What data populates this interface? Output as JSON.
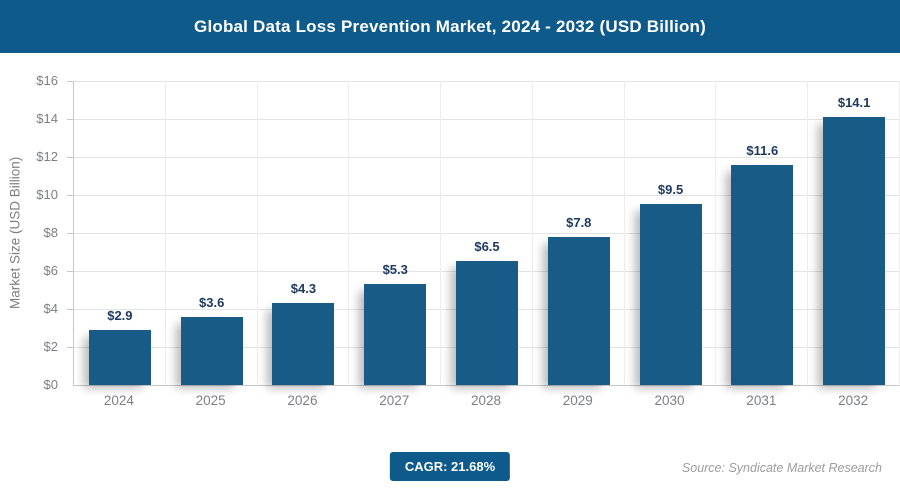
{
  "header": {
    "title": "Global Data Loss Prevention Market, 2024 - 2032 (USD Billion)",
    "bg_color": "#0E5A8A",
    "text_color": "#FFFFFF"
  },
  "chart_data": {
    "type": "bar",
    "title": "Global Data Loss Prevention Market, 2024 - 2032 (USD Billion)",
    "categories": [
      "2024",
      "2025",
      "2026",
      "2027",
      "2028",
      "2029",
      "2030",
      "2031",
      "2032"
    ],
    "values": [
      2.9,
      3.6,
      4.3,
      5.3,
      6.5,
      7.8,
      9.5,
      11.6,
      14.1
    ],
    "value_labels": [
      "$2.9",
      "$3.6",
      "$4.3",
      "$5.3",
      "$6.5",
      "$7.8",
      "$9.5",
      "$11.6",
      "$14.1"
    ],
    "xlabel": "",
    "ylabel": "Market Size (USD Billion)",
    "ylim": [
      0,
      16
    ],
    "ytick_step": 2,
    "ytick_labels": [
      "$0",
      "$2",
      "$4",
      "$6",
      "$8",
      "$10",
      "$12",
      "$14",
      "$16"
    ],
    "grid": "light horizontal and vertical gridlines, legend none",
    "bar_color": "#175B86",
    "value_label_color": "#1F3A60",
    "axis_text_color": "#7D7F82"
  },
  "footer": {
    "cagr_label": "CAGR: 21.68%",
    "cagr_bg_color": "#0E5A8A",
    "source": "Source: Syndicate Market Research"
  }
}
